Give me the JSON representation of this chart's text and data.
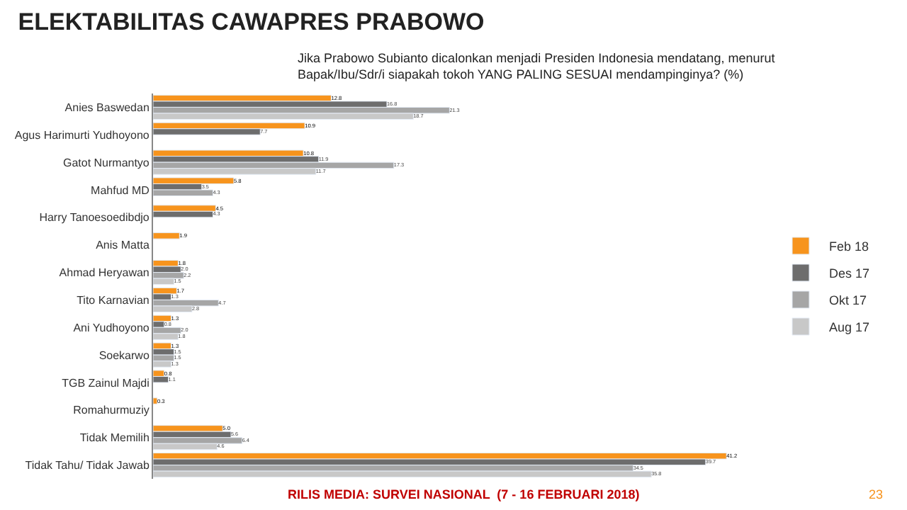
{
  "chart_data": {
    "type": "bar",
    "orientation": "horizontal",
    "title": "ELEKTABILITAS CAWAPRES PRABOWO",
    "subtitle": "Jika Prabowo Subianto dicalonkan menjadi Presiden Indonesia mendatang, menurut\nBapak/Ibu/Sdr/i siapakah tokoh YANG PALING SESUAI mendampinginya? (%)",
    "categories": [
      "Anies Baswedan",
      "Agus Harimurti Yudhoyono",
      "Gatot Nurmantyo",
      "Mahfud MD",
      "Harry Tanoesoedibdjo",
      "Anis Matta",
      "Ahmad Heryawan",
      "Tito Karnavian",
      "Ani Yudhoyono",
      "Soekarwo",
      "TGB Zainul Majdi",
      "Romahurmuziy",
      "Tidak Memilih",
      "Tidak Tahu/ Tidak Jawab"
    ],
    "series": [
      {
        "name": "Feb 18",
        "color": "#f7941d",
        "values": [
          12.8,
          10.9,
          10.8,
          5.8,
          4.5,
          1.9,
          1.8,
          1.7,
          1.3,
          1.3,
          0.8,
          0.3,
          5.0,
          41.2
        ],
        "value_labels": [
          "12.8",
          "10.9",
          "10.8",
          "5.8",
          "4.5",
          "1.9",
          "1.8",
          "1.7",
          "1.3",
          "1.3",
          "0.8",
          "0.3",
          "5.0",
          "41.2"
        ]
      },
      {
        "name": "Des 17",
        "color": "#6d6d6d",
        "values": [
          16.8,
          7.7,
          11.9,
          3.5,
          4.3,
          null,
          2.0,
          1.3,
          0.8,
          1.5,
          1.1,
          null,
          5.6,
          39.7
        ],
        "value_labels": [
          "16.8",
          "7.7",
          "11.9",
          "3.5",
          "4.3",
          null,
          "2.0",
          "1.3",
          "0.8",
          "1.5",
          "1.1",
          null,
          "5.6",
          "39.7"
        ]
      },
      {
        "name": "Okt 17",
        "color": "#a6a6a6",
        "values": [
          21.3,
          null,
          17.3,
          4.3,
          null,
          null,
          2.2,
          4.7,
          2.0,
          1.5,
          null,
          null,
          6.4,
          34.5
        ],
        "value_labels": [
          "21.3",
          null,
          "17.3",
          "4.3",
          null,
          null,
          "2.2",
          "4.7",
          "2.0",
          "1.5",
          null,
          null,
          "6.4",
          "34.5"
        ]
      },
      {
        "name": "Aug 17",
        "color": "#c8c8c8",
        "values": [
          18.7,
          null,
          11.7,
          null,
          null,
          null,
          1.5,
          2.8,
          1.8,
          1.3,
          null,
          null,
          4.6,
          35.8
        ],
        "value_labels": [
          "18.7",
          null,
          "11.7",
          null,
          null,
          null,
          "1.5",
          "2.8",
          "1.8",
          "1.3",
          null,
          null,
          "4.6",
          "35.8"
        ]
      }
    ],
    "legend": "right",
    "annotations": [
      "RILIS MEDIA: SURVEI NASIONAL  (7 - 16 FEBRUARI 2018)",
      "23"
    ]
  }
}
